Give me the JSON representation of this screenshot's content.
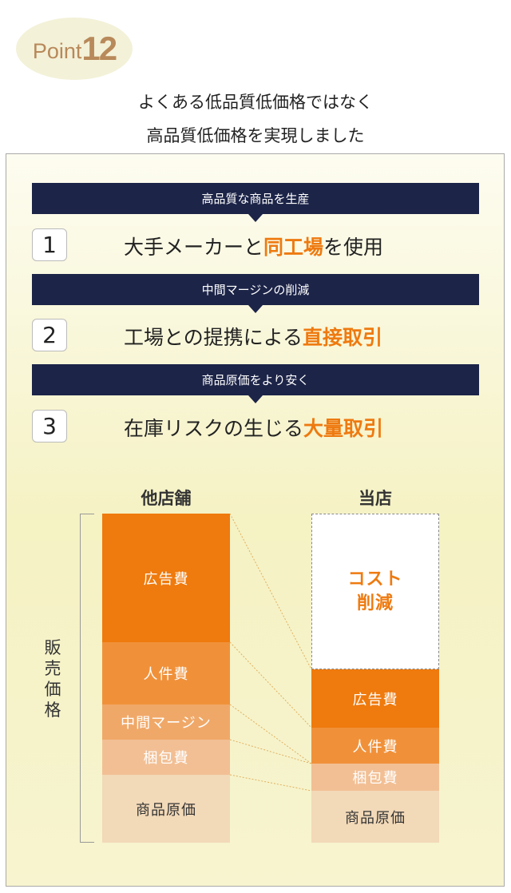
{
  "badge": {
    "label": "Point",
    "number": "12"
  },
  "headline": [
    "よくある低品質低価格ではなく",
    "高品質低価格を実現しました"
  ],
  "steps": [
    {
      "banner": "高品質な商品を生産",
      "num": "1",
      "pre": "大手メーカーと",
      "hl": "同工場",
      "post": "を使用"
    },
    {
      "banner": "中間マージンの削減",
      "num": "2",
      "pre": "工場との提携による",
      "hl": "直接取引",
      "post": ""
    },
    {
      "banner": "商品原価をより安く",
      "num": "3",
      "pre": "在庫リスクの生じる",
      "hl": "大量取引",
      "post": ""
    }
  ],
  "comparison": {
    "axis_label": "販売価格",
    "other": {
      "title": "他店舗",
      "segments": [
        "広告費",
        "人件費",
        "中間マージン",
        "梱包費",
        "商品原価"
      ]
    },
    "ours": {
      "title": "当店",
      "cut_line1": "コスト",
      "cut_line2": "削減",
      "segments": [
        "広告費",
        "人件費",
        "梱包費",
        "商品原価"
      ]
    }
  },
  "colors": {
    "accent": "#ee7a10",
    "navy": "#1c2448",
    "ad": "#ef7a0d",
    "labor": "#f0913a",
    "margin": "#f0a868",
    "packing": "#f2bf94",
    "cost": "#f2d9b8"
  }
}
